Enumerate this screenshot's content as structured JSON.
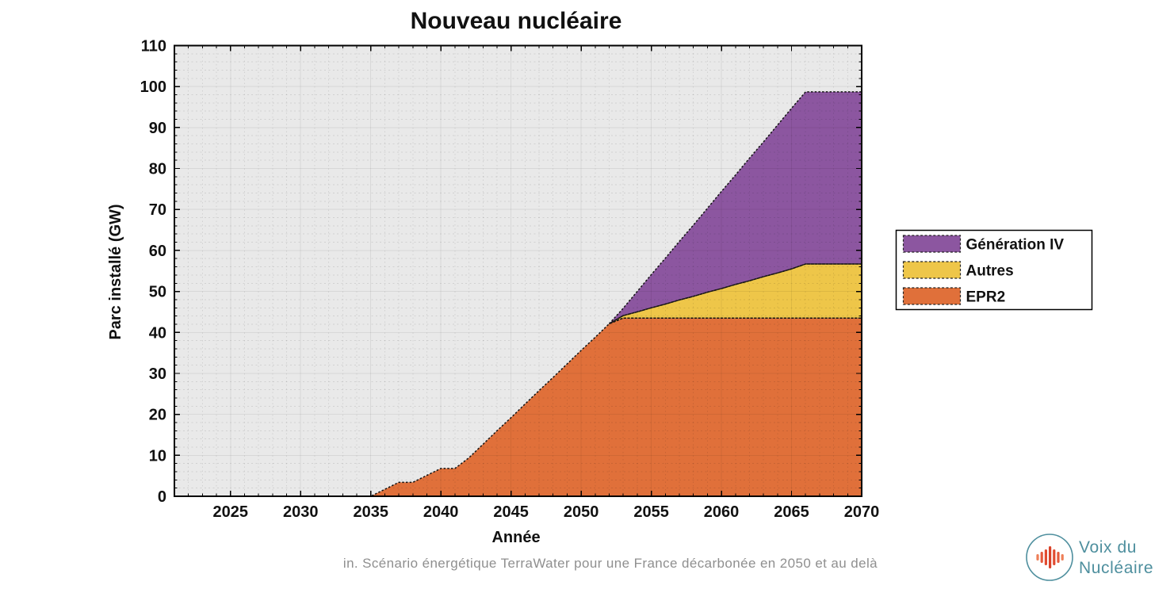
{
  "page": {
    "background": "#ffffff"
  },
  "chart_data": {
    "type": "area",
    "stacked": true,
    "title": "Nouveau nucléaire",
    "xlabel": "Année",
    "ylabel": "Parc installé (GW)",
    "xlim": [
      2021,
      2070
    ],
    "ylim": [
      0,
      110
    ],
    "xticks": [
      2025,
      2030,
      2035,
      2040,
      2045,
      2050,
      2055,
      2060,
      2065,
      2070
    ],
    "yticks": [
      0,
      10,
      20,
      30,
      40,
      50,
      60,
      70,
      80,
      90,
      100,
      110
    ],
    "x_minor_step": 1,
    "y_minor_step": 2,
    "grid": "major and minor, gray dotted minor grid on light-gray plot background",
    "plot_background": "#e9e9e9",
    "edge_color": "#141414",
    "edge_dash": [
      2.5,
      2.2
    ],
    "legend": {
      "position": "right-outside",
      "labels_top_to_bottom": [
        "Génération IV",
        "Autres",
        "EPR2"
      ]
    },
    "x": [
      2021,
      2022,
      2023,
      2024,
      2025,
      2026,
      2027,
      2028,
      2029,
      2030,
      2031,
      2032,
      2033,
      2034,
      2035,
      2036,
      2037,
      2038,
      2039,
      2040,
      2041,
      2042,
      2043,
      2044,
      2045,
      2046,
      2047,
      2048,
      2049,
      2050,
      2051,
      2052,
      2053,
      2054,
      2055,
      2056,
      2057,
      2058,
      2059,
      2060,
      2061,
      2062,
      2063,
      2064,
      2065,
      2066,
      2067,
      2068,
      2069,
      2070
    ],
    "series": [
      {
        "name": "EPR2",
        "color": "#e0703a",
        "values": [
          0,
          0,
          0,
          0,
          0,
          0,
          0,
          0,
          0,
          0,
          0,
          0,
          0,
          0,
          0,
          1.7,
          3.4,
          3.4,
          5.1,
          6.8,
          6.8,
          9.4,
          12.7,
          16,
          19.2,
          22.5,
          25.8,
          29,
          32.3,
          35.6,
          38.8,
          42.1,
          43.5,
          43.5,
          43.5,
          43.5,
          43.5,
          43.5,
          43.5,
          43.5,
          43.5,
          43.5,
          43.5,
          43.5,
          43.5,
          43.5,
          43.5,
          43.5,
          43.5,
          43.5
        ]
      },
      {
        "name": "Autres",
        "color": "#eec649",
        "values": [
          0,
          0,
          0,
          0,
          0,
          0,
          0,
          0,
          0,
          0,
          0,
          0,
          0,
          0,
          0,
          0,
          0,
          0,
          0,
          0,
          0,
          0,
          0,
          0,
          0,
          0,
          0,
          0,
          0,
          0,
          0,
          0,
          0.6,
          1.5,
          2.5,
          3.4,
          4.4,
          5.3,
          6.3,
          7.2,
          8.2,
          9.1,
          10.1,
          11,
          12,
          13.2,
          13.2,
          13.2,
          13.2,
          13.2
        ]
      },
      {
        "name": "Génération IV",
        "color": "#8c56a0",
        "values": [
          0,
          0,
          0,
          0,
          0,
          0,
          0,
          0,
          0,
          0,
          0,
          0,
          0,
          0,
          0,
          0,
          0,
          0,
          0,
          0,
          0,
          0,
          0,
          0,
          0,
          0,
          0,
          0,
          0,
          0,
          0,
          0,
          1.8,
          5,
          8.1,
          11.2,
          14.3,
          17.4,
          20.5,
          23.7,
          26.7,
          29.9,
          32.9,
          36.1,
          39.2,
          42,
          42,
          42,
          42,
          42
        ]
      }
    ]
  },
  "caption": {
    "text": "in. Scénario énergétique TerraWater pour une France décarbonée en 2050 et au delà"
  },
  "logo": {
    "line1": "Voix du",
    "line2": "Nucléaire",
    "accent_color": "#4e8f9e",
    "wave_color": "#e14b30"
  }
}
